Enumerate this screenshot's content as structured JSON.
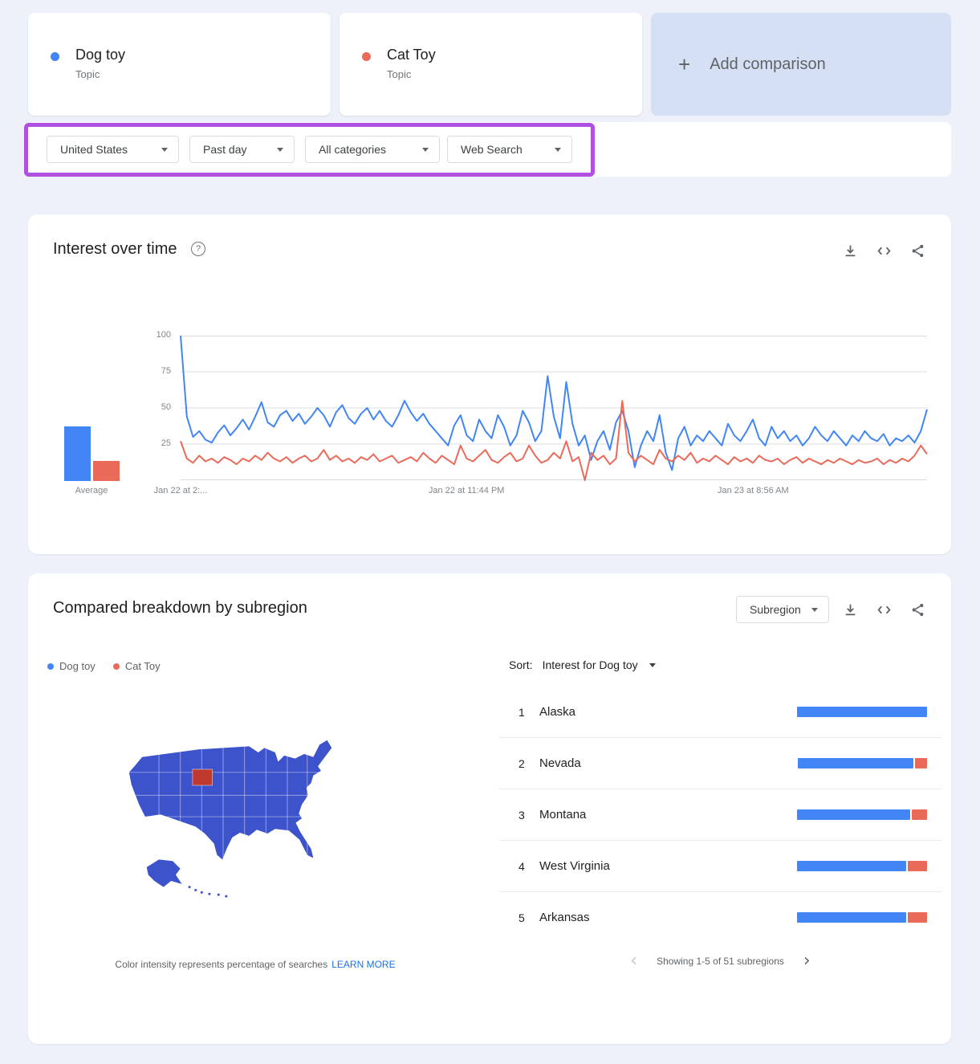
{
  "colors": {
    "dog": "#4285f4",
    "cat": "#ea6a5a",
    "map_fill": "#3d53cb",
    "map_highlight": "#c0392e",
    "accent_box": "#b050e0",
    "link": "#1a73e8"
  },
  "comparison": {
    "terms": [
      {
        "label": "Dog toy",
        "sublabel": "Topic"
      },
      {
        "label": "Cat Toy",
        "sublabel": "Topic"
      }
    ],
    "add_label": "Add comparison"
  },
  "filters": {
    "region": "United States",
    "time": "Past day",
    "category": "All categories",
    "search_type": "Web Search"
  },
  "interest_over_time": {
    "title": "Interest over time",
    "average_label": "Average"
  },
  "breakdown": {
    "title": "Compared breakdown by subregion",
    "view_selector": "Subregion",
    "legend": [
      "Dog toy",
      "Cat Toy"
    ],
    "sort_label": "Sort:",
    "sort_value": "Interest for Dog toy",
    "caption": "Color intensity represents percentage of searches",
    "caption_link": "LEARN MORE",
    "pagination": "Showing 1-5 of 51 subregions"
  },
  "chart_data": [
    {
      "type": "line",
      "title": "Interest over time",
      "xlabel": "",
      "ylabel": "",
      "ylim": [
        0,
        100
      ],
      "grid": true,
      "legend_position": "none",
      "y_ticks": [
        25,
        50,
        75,
        100
      ],
      "x_tick_labels": [
        "Jan 22 at 2:...",
        "Jan 22 at 11:44 PM",
        "Jan 23 at 8:56 AM"
      ],
      "x_tick_positions": [
        0,
        0.383,
        0.767
      ],
      "series": [
        {
          "name": "Dog toy",
          "color": "#4285f4",
          "average": 38,
          "values": [
            100,
            44,
            30,
            34,
            28,
            26,
            33,
            38,
            31,
            36,
            42,
            35,
            44,
            54,
            40,
            37,
            45,
            48,
            41,
            46,
            39,
            44,
            50,
            45,
            37,
            47,
            52,
            43,
            39,
            46,
            50,
            42,
            48,
            41,
            37,
            45,
            55,
            47,
            41,
            46,
            39,
            34,
            29,
            24,
            38,
            45,
            31,
            27,
            42,
            34,
            29,
            45,
            37,
            24,
            31,
            48,
            40,
            27,
            34,
            72,
            44,
            29,
            68,
            39,
            24,
            31,
            14,
            27,
            34,
            21,
            40,
            48,
            34,
            9,
            24,
            34,
            27,
            45,
            19,
            7,
            29,
            37,
            24,
            31,
            27,
            34,
            29,
            24,
            39,
            31,
            27,
            34,
            42,
            29,
            24,
            37,
            29,
            34,
            27,
            31,
            24,
            29,
            37,
            31,
            27,
            34,
            29,
            24,
            31,
            27,
            34,
            29,
            27,
            32,
            24,
            29,
            27,
            31,
            26,
            34,
            49
          ]
        },
        {
          "name": "Cat Toy",
          "color": "#ea6a5a",
          "average": 14,
          "values": [
            27,
            15,
            12,
            17,
            13,
            15,
            12,
            16,
            14,
            11,
            15,
            13,
            17,
            14,
            19,
            15,
            13,
            16,
            12,
            15,
            17,
            13,
            15,
            21,
            14,
            17,
            13,
            15,
            12,
            16,
            14,
            18,
            13,
            15,
            17,
            12,
            14,
            16,
            13,
            19,
            15,
            12,
            17,
            14,
            11,
            24,
            15,
            13,
            17,
            21,
            14,
            12,
            16,
            19,
            13,
            15,
            24,
            17,
            12,
            14,
            19,
            15,
            27,
            13,
            16,
            0,
            19,
            14,
            17,
            11,
            15,
            55,
            19,
            13,
            17,
            14,
            11,
            21,
            15,
            13,
            17,
            14,
            19,
            12,
            15,
            13,
            17,
            14,
            11,
            16,
            13,
            15,
            12,
            17,
            14,
            13,
            15,
            11,
            14,
            16,
            12,
            15,
            13,
            11,
            14,
            12,
            15,
            13,
            11,
            14,
            12,
            13,
            15,
            11,
            14,
            12,
            15,
            13,
            17,
            24,
            18
          ]
        }
      ]
    },
    {
      "type": "bar",
      "title": "Compared breakdown by subregion",
      "categories": [
        "Alaska",
        "Nevada",
        "Montana",
        "West Virginia",
        "Arkansas"
      ],
      "series": [
        {
          "name": "Dog toy",
          "color": "#4285f4",
          "values": [
            100,
            89,
            87,
            84,
            84
          ]
        },
        {
          "name": "Cat Toy",
          "color": "#ea6a5a",
          "values": [
            0,
            9,
            12,
            15,
            15
          ]
        }
      ],
      "xlabel": "",
      "ylabel": "",
      "max_total": 100
    }
  ]
}
